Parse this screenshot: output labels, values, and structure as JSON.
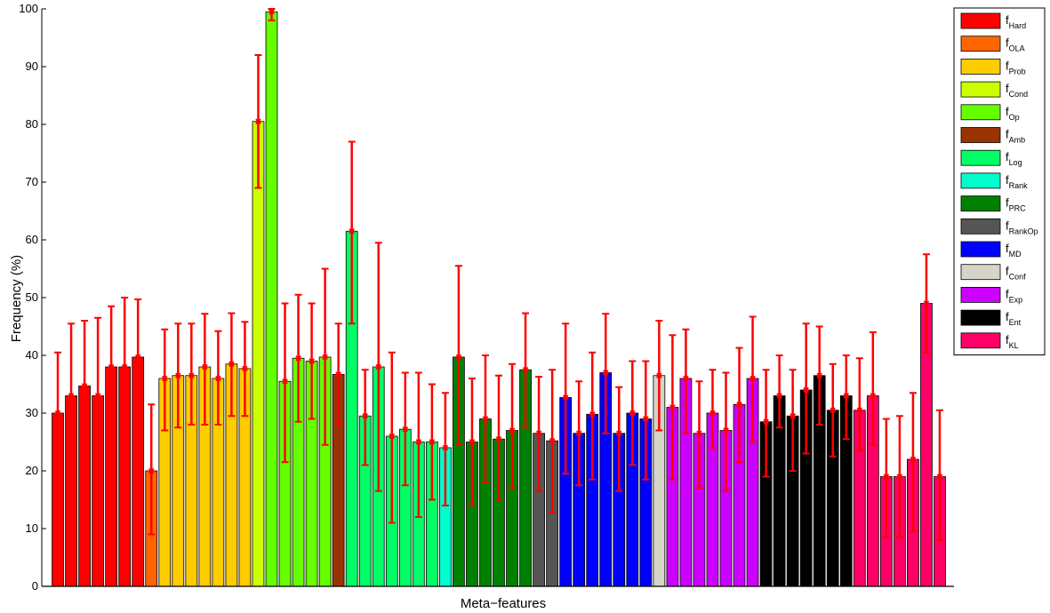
{
  "chart_data": {
    "type": "bar",
    "xlabel": "Meta−features",
    "ylabel": "Frequency (%)",
    "ylim": [
      0,
      100
    ],
    "yticks": [
      0,
      10,
      20,
      30,
      40,
      50,
      60,
      70,
      80,
      90,
      100
    ],
    "legend_position": "top-right",
    "groups": [
      {
        "name": "f",
        "sub": "Hard",
        "color": "#ff0000",
        "values": [
          30,
          33,
          34.7,
          33,
          38,
          38,
          39.7
        ],
        "err_low": [
          0,
          0,
          0,
          0,
          0,
          0,
          0
        ],
        "err_high": [
          40.5,
          45.5,
          46,
          46.5,
          48.5,
          50,
          49.7
        ]
      },
      {
        "name": "f",
        "sub": "OLA",
        "color": "#ff6600",
        "values": [
          20
        ],
        "err_low": [
          9
        ],
        "err_high": [
          31.5
        ]
      },
      {
        "name": "f",
        "sub": "Prob",
        "color": "#ffcc00",
        "values": [
          36,
          36.5,
          36.5,
          38,
          36,
          38.5,
          37.7
        ],
        "err_low": [
          27,
          27.5,
          28,
          28,
          28,
          29.5,
          29.5
        ],
        "err_high": [
          44.5,
          45.5,
          45.5,
          47.2,
          44.2,
          47.3,
          45.8
        ]
      },
      {
        "name": "f",
        "sub": "Cond",
        "color": "#ccff00",
        "values": [
          80.5
        ],
        "err_low": [
          69
        ],
        "err_high": [
          92
        ]
      },
      {
        "name": "f",
        "sub": "Op",
        "color": "#66ff00",
        "values": [
          99.5,
          35.5,
          39.5,
          39,
          39.7
        ],
        "err_low": [
          98,
          21.5,
          28.5,
          29,
          24.5
        ],
        "err_high": [
          100,
          49,
          50.5,
          49,
          55
        ]
      },
      {
        "name": "f",
        "sub": "Amb",
        "color": "#993300",
        "values": [
          36.7
        ],
        "err_low": [
          28
        ],
        "err_high": [
          45.5
        ]
      },
      {
        "name": "f",
        "sub": "Log",
        "color": "#00ff66",
        "values": [
          61.5,
          29.5,
          38,
          26,
          27.2,
          25,
          25
        ],
        "err_low": [
          45.5,
          21,
          16.5,
          11,
          17.5,
          12,
          15
        ],
        "err_high": [
          77,
          37.5,
          59.5,
          40.5,
          37,
          37,
          35
        ]
      },
      {
        "name": "f",
        "sub": "Rank",
        "color": "#00ffcc",
        "values": [
          24
        ],
        "err_low": [
          14
        ],
        "err_high": [
          33.5
        ]
      },
      {
        "name": "f",
        "sub": "PRC",
        "color": "#008000",
        "values": [
          39.7,
          25,
          29,
          25.5,
          27,
          37.5
        ],
        "err_low": [
          24.5,
          14,
          18,
          15,
          17,
          27.5
        ],
        "err_high": [
          55.5,
          36,
          40,
          36.5,
          38.5,
          47.3
        ]
      },
      {
        "name": "f",
        "sub": "RankOp",
        "color": "#555555",
        "values": [
          26.5,
          25.2
        ],
        "err_low": [
          16.5,
          12.8
        ],
        "err_high": [
          36.3,
          37.5
        ]
      },
      {
        "name": "f",
        "sub": "MD",
        "color": "#0000ff",
        "values": [
          32.7,
          26.5,
          29.8,
          37,
          26.5,
          30,
          29
        ],
        "err_low": [
          19.5,
          17.5,
          18.5,
          26.5,
          16.5,
          21,
          18.5
        ],
        "err_high": [
          45.5,
          35.5,
          40.5,
          47.2,
          34.5,
          39,
          39
        ]
      },
      {
        "name": "f",
        "sub": "Conf",
        "color": "#d6d3c9",
        "values": [
          36.5
        ],
        "err_low": [
          27
        ],
        "err_high": [
          46
        ]
      },
      {
        "name": "f",
        "sub": "Exp",
        "color": "#cc00ff",
        "values": [
          31,
          36,
          26.5,
          30,
          27,
          31.5,
          36
        ],
        "err_low": [
          18.5,
          26.5,
          17,
          24,
          16.5,
          21.5,
          25
        ],
        "err_high": [
          43.5,
          44.5,
          35.5,
          37.5,
          37,
          41.3,
          46.7
        ]
      },
      {
        "name": "f",
        "sub": "Ent",
        "color": "#000000",
        "values": [
          28.5,
          33,
          29.5,
          34,
          36.5,
          30.5,
          33
        ],
        "err_low": [
          19,
          27.5,
          20,
          23,
          28,
          22.5,
          25.5
        ],
        "err_high": [
          37.5,
          40,
          37.5,
          45.5,
          45,
          38.5,
          40
        ]
      },
      {
        "name": "f",
        "sub": "KL",
        "color": "#ff0066",
        "values": [
          30.5,
          33,
          19,
          19,
          22,
          49,
          19
        ],
        "err_low": [
          23.5,
          24.5,
          8.5,
          8.5,
          9.5,
          40.5,
          8
        ],
        "err_high": [
          39.5,
          44,
          29,
          29.5,
          33.5,
          57.5,
          30.5
        ]
      }
    ]
  }
}
